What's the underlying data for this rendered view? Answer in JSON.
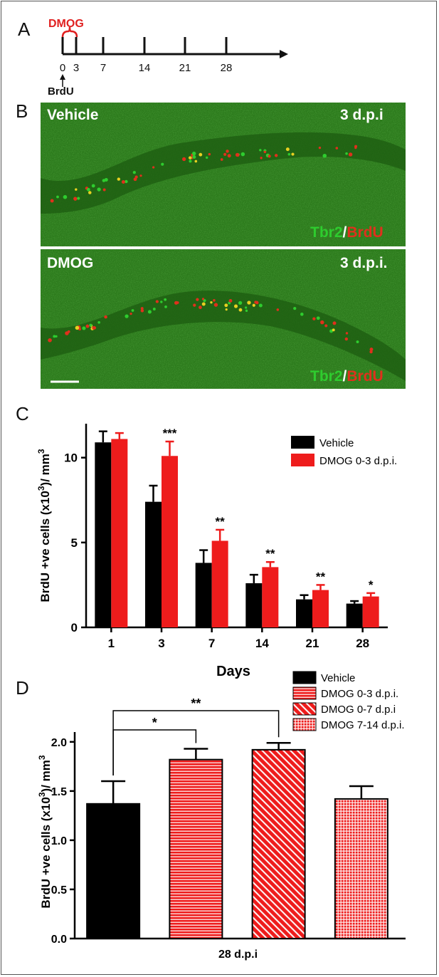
{
  "panels": {
    "a": "A",
    "b": "B",
    "c": "C",
    "d": "D"
  },
  "timeline": {
    "treatment_label": "DMOG",
    "ticks": [
      "0",
      "3",
      "7",
      "14",
      "21",
      "28"
    ],
    "injection_label": "BrdU"
  },
  "micrographs": [
    {
      "condition": "Vehicle",
      "timepoint": "3 d.p.i",
      "stain_a": "Tbr2",
      "stain_sep": "/",
      "stain_b": "BrdU"
    },
    {
      "condition": "DMOG",
      "timepoint": "3 d.p.i.",
      "stain_a": "Tbr2",
      "stain_sep": "/",
      "stain_b": "BrdU"
    }
  ],
  "colors": {
    "vehicle": "#000000",
    "dmog": "#ee1c1c",
    "tissue_green": "#2f7d1e",
    "stain_green": "#2ecc2e",
    "stain_red": "#e0301c"
  },
  "chart_data": [
    {
      "type": "bar",
      "panel": "C",
      "categories": [
        "1",
        "3",
        "7",
        "14",
        "21",
        "28"
      ],
      "xlabel": "Days",
      "ylabel_main": "BrdU +ve cells (x10",
      "ylabel_sup": "3",
      "ylabel_end": ")/ mm",
      "ylabel_sup2": "3",
      "ylim": [
        0,
        12
      ],
      "yticks": [
        "0",
        "5",
        "10"
      ],
      "legend_position": "top-right",
      "series": [
        {
          "name": "Vehicle",
          "values": [
            10.9,
            7.4,
            3.8,
            2.6,
            1.65,
            1.4
          ],
          "errors": [
            0.65,
            0.95,
            0.75,
            0.5,
            0.25,
            0.15
          ]
        },
        {
          "name": "DMOG  0-3 d.p.i.",
          "values": [
            11.1,
            10.1,
            5.1,
            3.55,
            2.2,
            1.82
          ],
          "errors": [
            0.35,
            0.85,
            0.65,
            0.3,
            0.3,
            0.2
          ]
        }
      ],
      "significance": [
        "",
        "***",
        "**",
        "**",
        "**",
        "*"
      ]
    },
    {
      "type": "bar",
      "panel": "D",
      "categories": [
        "Vehicle",
        "DMOG  0-3 d.p.i.",
        "DMOG  0-7 d.p.i",
        "DMOG  7-14 d.p.i."
      ],
      "xlabel": "28 d.p.i",
      "ylabel_main": "BrdU +ve cells (x10",
      "ylabel_sup": "3",
      "ylabel_end": ")/ mm",
      "ylabel_sup2": "3",
      "ylim": [
        0,
        2.1
      ],
      "yticks": [
        "0.0",
        "0.5",
        "1.0",
        "1.5",
        "2.0"
      ],
      "legend_position": "top-right",
      "values": [
        1.37,
        1.82,
        1.92,
        1.42
      ],
      "errors": [
        0.23,
        0.11,
        0.07,
        0.13
      ],
      "fill_patterns": [
        "solid",
        "horizontal-stripes",
        "diagonal-stripes",
        "checkered"
      ],
      "comparisons": [
        {
          "from": 0,
          "to": 1,
          "label": "*"
        },
        {
          "from": 0,
          "to": 2,
          "label": "**"
        }
      ]
    }
  ]
}
